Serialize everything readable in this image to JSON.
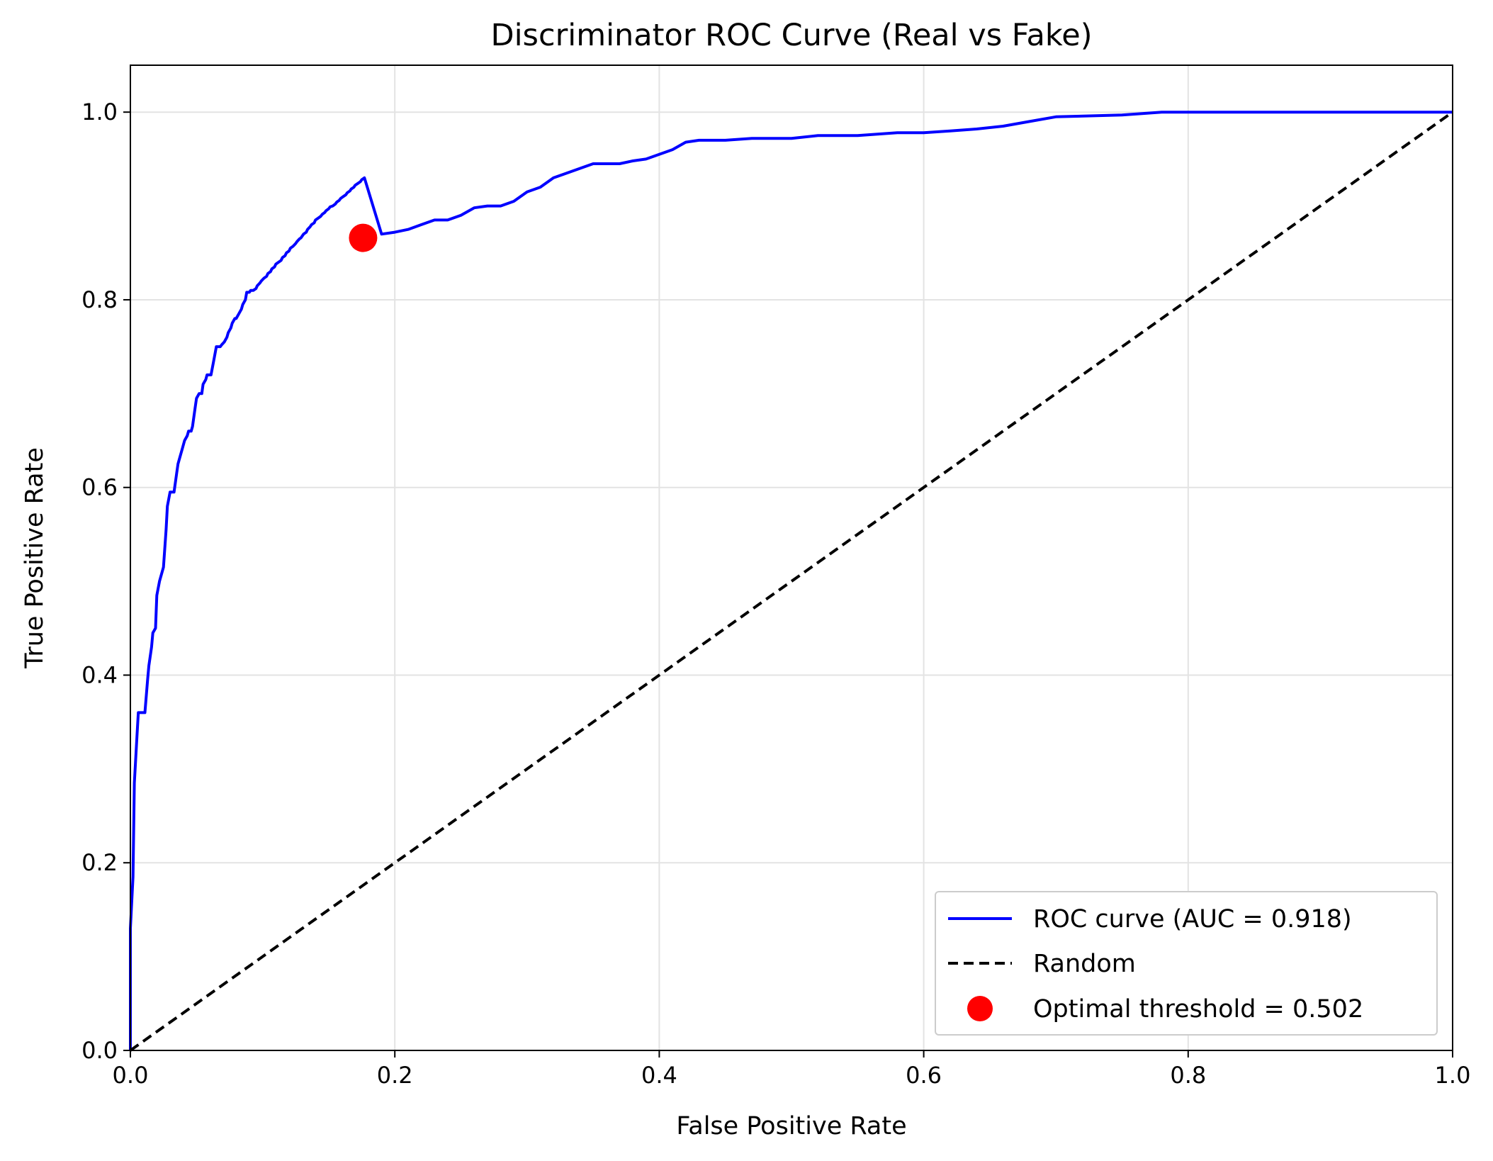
{
  "chart_data": {
    "type": "line",
    "title": "Discriminator ROC Curve (Real vs Fake)",
    "xlabel": "False Positive Rate",
    "ylabel": "True Positive Rate",
    "xlim": [
      0.0,
      1.0
    ],
    "ylim": [
      0.0,
      1.05
    ],
    "grid": true,
    "legend_position": "lower-right",
    "x_ticks": [
      "0.0",
      "0.2",
      "0.4",
      "0.6",
      "0.8",
      "1.0"
    ],
    "y_ticks": [
      "0.0",
      "0.2",
      "0.4",
      "0.6",
      "0.8",
      "1.0"
    ],
    "series": [
      {
        "name": "ROC curve (AUC = 0.918)",
        "color": "#0000ff",
        "style": "solid",
        "x": [
          0.0,
          0.0,
          0.002,
          0.003,
          0.005,
          0.006,
          0.008,
          0.009,
          0.011,
          0.013,
          0.014,
          0.016,
          0.017,
          0.019,
          0.02,
          0.022,
          0.024,
          0.025,
          0.027,
          0.028,
          0.03,
          0.031,
          0.033,
          0.035,
          0.036,
          0.038,
          0.039,
          0.041,
          0.043,
          0.044,
          0.046,
          0.047,
          0.049,
          0.05,
          0.052,
          0.054,
          0.055,
          0.057,
          0.058,
          0.06,
          0.061,
          0.063,
          0.065,
          0.066,
          0.068,
          0.069,
          0.071,
          0.073,
          0.074,
          0.076,
          0.077,
          0.079,
          0.08,
          0.082,
          0.084,
          0.085,
          0.087,
          0.088,
          0.09,
          0.091,
          0.093,
          0.095,
          0.096,
          0.098,
          0.099,
          0.101,
          0.103,
          0.104,
          0.106,
          0.107,
          0.109,
          0.11,
          0.112,
          0.114,
          0.115,
          0.117,
          0.118,
          0.12,
          0.121,
          0.123,
          0.125,
          0.126,
          0.128,
          0.129,
          0.131,
          0.133,
          0.134,
          0.136,
          0.137,
          0.139,
          0.14,
          0.142,
          0.144,
          0.145,
          0.147,
          0.148,
          0.15,
          0.151,
          0.153,
          0.155,
          0.156,
          0.158,
          0.159,
          0.161,
          0.163,
          0.164,
          0.166,
          0.167,
          0.169,
          0.17,
          0.172,
          0.174,
          0.175,
          0.177,
          0.19,
          0.2,
          0.21,
          0.22,
          0.23,
          0.24,
          0.25,
          0.26,
          0.27,
          0.28,
          0.29,
          0.3,
          0.31,
          0.32,
          0.33,
          0.34,
          0.35,
          0.36,
          0.37,
          0.38,
          0.39,
          0.4,
          0.41,
          0.42,
          0.43,
          0.45,
          0.47,
          0.5,
          0.52,
          0.55,
          0.58,
          0.6,
          0.62,
          0.64,
          0.66,
          0.68,
          0.7,
          0.75,
          0.78,
          0.8,
          0.85,
          0.9,
          0.95,
          1.0
        ],
        "y": [
          0.0,
          0.13,
          0.185,
          0.285,
          0.335,
          0.36,
          0.36,
          0.36,
          0.36,
          0.395,
          0.41,
          0.43,
          0.445,
          0.45,
          0.485,
          0.5,
          0.51,
          0.515,
          0.555,
          0.58,
          0.595,
          0.595,
          0.595,
          0.615,
          0.625,
          0.635,
          0.64,
          0.65,
          0.655,
          0.66,
          0.66,
          0.665,
          0.685,
          0.695,
          0.7,
          0.7,
          0.71,
          0.715,
          0.72,
          0.72,
          0.72,
          0.735,
          0.75,
          0.75,
          0.75,
          0.752,
          0.755,
          0.76,
          0.765,
          0.77,
          0.775,
          0.78,
          0.78,
          0.785,
          0.79,
          0.795,
          0.8,
          0.808,
          0.808,
          0.81,
          0.81,
          0.812,
          0.815,
          0.818,
          0.82,
          0.823,
          0.825,
          0.828,
          0.83,
          0.833,
          0.835,
          0.838,
          0.84,
          0.842,
          0.845,
          0.847,
          0.85,
          0.852,
          0.855,
          0.857,
          0.86,
          0.862,
          0.865,
          0.866,
          0.87,
          0.872,
          0.875,
          0.878,
          0.88,
          0.882,
          0.885,
          0.887,
          0.889,
          0.891,
          0.893,
          0.895,
          0.897,
          0.899,
          0.9,
          0.902,
          0.904,
          0.906,
          0.908,
          0.91,
          0.912,
          0.914,
          0.916,
          0.918,
          0.92,
          0.922,
          0.924,
          0.926,
          0.928,
          0.93,
          0.87,
          0.872,
          0.875,
          0.88,
          0.885,
          0.885,
          0.89,
          0.898,
          0.9,
          0.9,
          0.905,
          0.915,
          0.92,
          0.93,
          0.935,
          0.94,
          0.945,
          0.945,
          0.945,
          0.948,
          0.95,
          0.955,
          0.96,
          0.968,
          0.97,
          0.97,
          0.972,
          0.972,
          0.975,
          0.975,
          0.978,
          0.978,
          0.98,
          0.982,
          0.985,
          0.99,
          0.995,
          0.997,
          1.0,
          1.0,
          1.0,
          1.0,
          1.0,
          1.0
        ]
      },
      {
        "name": "Random",
        "color": "#000000",
        "style": "dashed",
        "x": [
          0.0,
          1.0
        ],
        "y": [
          0.0,
          1.0
        ]
      }
    ],
    "marker": {
      "name": "Optimal threshold = 0.502",
      "color": "#ff0000",
      "x": 0.176,
      "y": 0.866
    }
  }
}
